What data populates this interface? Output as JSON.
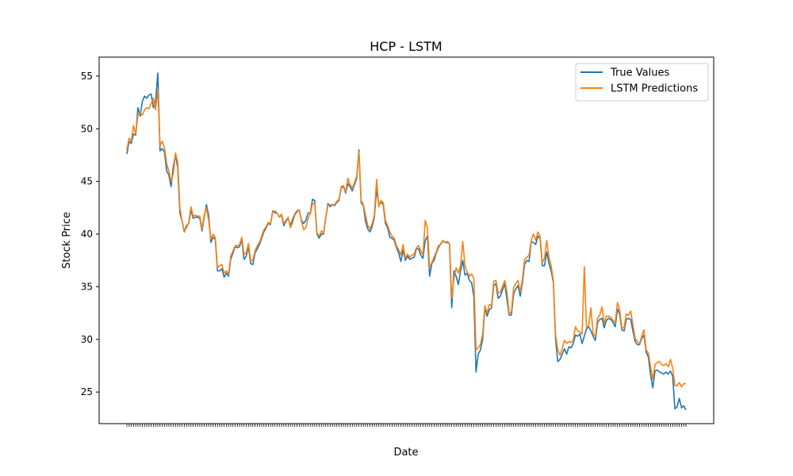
{
  "chart_data": {
    "type": "line",
    "title": "HCP - LSTM",
    "xlabel": "Date",
    "ylabel": "Stock Price",
    "ylim": [
      22.0,
      56.8
    ],
    "yticks": [
      25,
      30,
      35,
      40,
      45,
      50,
      55
    ],
    "grid": false,
    "legend_position": "top-right",
    "colors": {
      "True Values": "#1f77b4",
      "LSTM Predictions": "#ff7f0e"
    },
    "series": [
      {
        "name": "True Values",
        "values": [
          47.6,
          48.8,
          48.6,
          49.5,
          49.4,
          52.0,
          51.2,
          52.6,
          53.1,
          52.9,
          53.2,
          53.3,
          52.0,
          52.6,
          55.3,
          47.9,
          48.1,
          47.8,
          46.0,
          45.6,
          44.5,
          46.4,
          47.5,
          46.3,
          42.0,
          41.2,
          40.2,
          40.8,
          41.0,
          42.3,
          41.5,
          41.6,
          41.6,
          41.5,
          40.3,
          41.6,
          42.8,
          41.8,
          39.2,
          39.7,
          39.5,
          36.5,
          36.5,
          36.7,
          35.9,
          36.3,
          36.0,
          37.6,
          38.2,
          38.8,
          38.7,
          38.8,
          39.5,
          37.6,
          37.9,
          38.8,
          37.2,
          37.1,
          38.2,
          38.6,
          39.0,
          39.6,
          40.2,
          40.6,
          41.0,
          40.9,
          42.2,
          42.0,
          42.0,
          41.6,
          41.8,
          40.8,
          41.2,
          41.5,
          40.8,
          41.4,
          41.9,
          42.2,
          42.3,
          41.3,
          41.0,
          41.3,
          42.0,
          42.0,
          43.3,
          43.2,
          40.0,
          39.6,
          40.0,
          40.0,
          41.5,
          42.9,
          42.6,
          42.8,
          42.7,
          43.0,
          43.2,
          44.4,
          44.5,
          43.9,
          44.8,
          44.5,
          44.1,
          44.7,
          45.3,
          48.0,
          43.0,
          42.7,
          41.2,
          40.5,
          40.2,
          40.7,
          41.6,
          44.2,
          42.9,
          43.0,
          42.8,
          41.0,
          40.6,
          39.7,
          39.6,
          39.4,
          38.7,
          38.2,
          37.4,
          38.5,
          37.5,
          37.9,
          37.6,
          37.7,
          37.8,
          38.6,
          38.6,
          38.0,
          37.7,
          39.4,
          39.8,
          36.0,
          37.2,
          37.5,
          38.2,
          38.7,
          39.1,
          39.3,
          39.2,
          39.2,
          39.1,
          33.0,
          36.5,
          36.0,
          35.2,
          36.5,
          37.5,
          36.1,
          36.3,
          35.6,
          35.4,
          34.1,
          26.9,
          28.6,
          29.0,
          30.0,
          33.0,
          32.2,
          32.8,
          33.0,
          35.1,
          35.3,
          33.9,
          34.1,
          34.7,
          35.3,
          33.8,
          32.3,
          32.3,
          34.3,
          34.8,
          35.1,
          34.1,
          35.4,
          37.1,
          37.5,
          37.4,
          39.3,
          39.2,
          39.0,
          39.8,
          39.6,
          37.0,
          37.0,
          38.3,
          37.2,
          36.5,
          35.4,
          30.0,
          27.9,
          28.1,
          28.6,
          29.1,
          28.6,
          29.3,
          29.2,
          29.6,
          30.4,
          30.3,
          30.5,
          29.6,
          30.3,
          31.0,
          31.2,
          30.8,
          30.3,
          29.9,
          31.6,
          31.9,
          32.0,
          31.1,
          31.8,
          32.0,
          31.9,
          31.6,
          31.2,
          32.9,
          32.4,
          30.9,
          30.8,
          31.9,
          32.0,
          31.9,
          30.8,
          29.8,
          29.5,
          29.5,
          30.1,
          30.4,
          28.8,
          28.3,
          26.6,
          25.4,
          27.0,
          27.1,
          26.9,
          26.8,
          26.7,
          26.9,
          26.7,
          27.0,
          26.5,
          23.4,
          23.6,
          24.4,
          23.5,
          23.7,
          23.3
        ]
      },
      {
        "name": "LSTM Predictions",
        "values": [
          48.0,
          49.1,
          48.8,
          50.3,
          49.5,
          51.3,
          51.5,
          51.3,
          51.8,
          52.0,
          51.9,
          52.4,
          52.9,
          51.8,
          53.7,
          48.4,
          48.8,
          48.2,
          46.7,
          46.0,
          45.0,
          45.7,
          47.7,
          46.8,
          42.5,
          41.2,
          40.3,
          40.6,
          41.1,
          42.6,
          41.7,
          41.8,
          41.7,
          41.7,
          40.5,
          41.8,
          42.5,
          41.3,
          39.5,
          40.0,
          39.7,
          36.8,
          37.0,
          37.1,
          36.3,
          36.5,
          36.2,
          37.9,
          38.4,
          38.9,
          38.9,
          39.0,
          39.7,
          38.1,
          38.2,
          39.1,
          37.5,
          37.5,
          38.4,
          38.9,
          39.2,
          39.8,
          40.4,
          40.7,
          41.1,
          41.0,
          42.1,
          42.2,
          42.0,
          41.6,
          41.9,
          41.0,
          41.3,
          41.6,
          40.6,
          41.1,
          41.8,
          42.1,
          42.3,
          41.2,
          40.4,
          40.6,
          41.5,
          41.9,
          42.9,
          42.9,
          40.1,
          39.8,
          40.3,
          40.1,
          41.6,
          42.7,
          42.8,
          42.7,
          42.8,
          43.1,
          43.3,
          44.5,
          44.6,
          44.0,
          45.3,
          44.7,
          44.3,
          44.9,
          45.5,
          47.8,
          43.2,
          42.8,
          41.8,
          40.8,
          40.5,
          41.0,
          41.8,
          45.2,
          42.6,
          43.2,
          43.0,
          41.3,
          40.8,
          40.2,
          39.8,
          39.6,
          38.9,
          38.5,
          38.0,
          39.0,
          37.7,
          38.1,
          37.8,
          38.0,
          38.1,
          38.7,
          38.9,
          38.4,
          38.0,
          41.3,
          40.6,
          36.8,
          37.3,
          37.8,
          38.3,
          38.9,
          39.0,
          39.4,
          39.2,
          39.3,
          39.1,
          33.9,
          35.8,
          36.8,
          36.3,
          37.0,
          39.3,
          37.0,
          36.4,
          36.0,
          36.2,
          35.8,
          29.0,
          29.2,
          29.5,
          30.5,
          33.2,
          32.5,
          33.3,
          33.2,
          35.5,
          35.6,
          34.4,
          34.5,
          35.0,
          35.6,
          34.5,
          32.5,
          32.6,
          34.9,
          35.3,
          35.6,
          34.5,
          35.7,
          37.6,
          37.8,
          38.0,
          39.4,
          40.0,
          39.4,
          40.2,
          39.8,
          37.3,
          37.7,
          39.4,
          37.8,
          37.0,
          35.6,
          30.4,
          29.0,
          28.5,
          29.1,
          29.9,
          29.6,
          29.8,
          29.7,
          29.9,
          31.2,
          30.8,
          30.7,
          30.5,
          36.9,
          31.1,
          31.3,
          33.0,
          30.5,
          30.3,
          32.0,
          32.3,
          33.1,
          31.5,
          32.2,
          32.2,
          32.1,
          31.8,
          31.6,
          33.5,
          32.8,
          31.1,
          31.1,
          32.4,
          32.3,
          32.7,
          31.4,
          30.1,
          29.8,
          29.6,
          30.3,
          30.9,
          29.0,
          28.7,
          27.4,
          26.2,
          27.6,
          27.8,
          27.9,
          27.6,
          27.5,
          27.7,
          27.4,
          28.1,
          27.3,
          25.6,
          25.6,
          25.9,
          25.5,
          25.8,
          25.8
        ]
      }
    ]
  }
}
